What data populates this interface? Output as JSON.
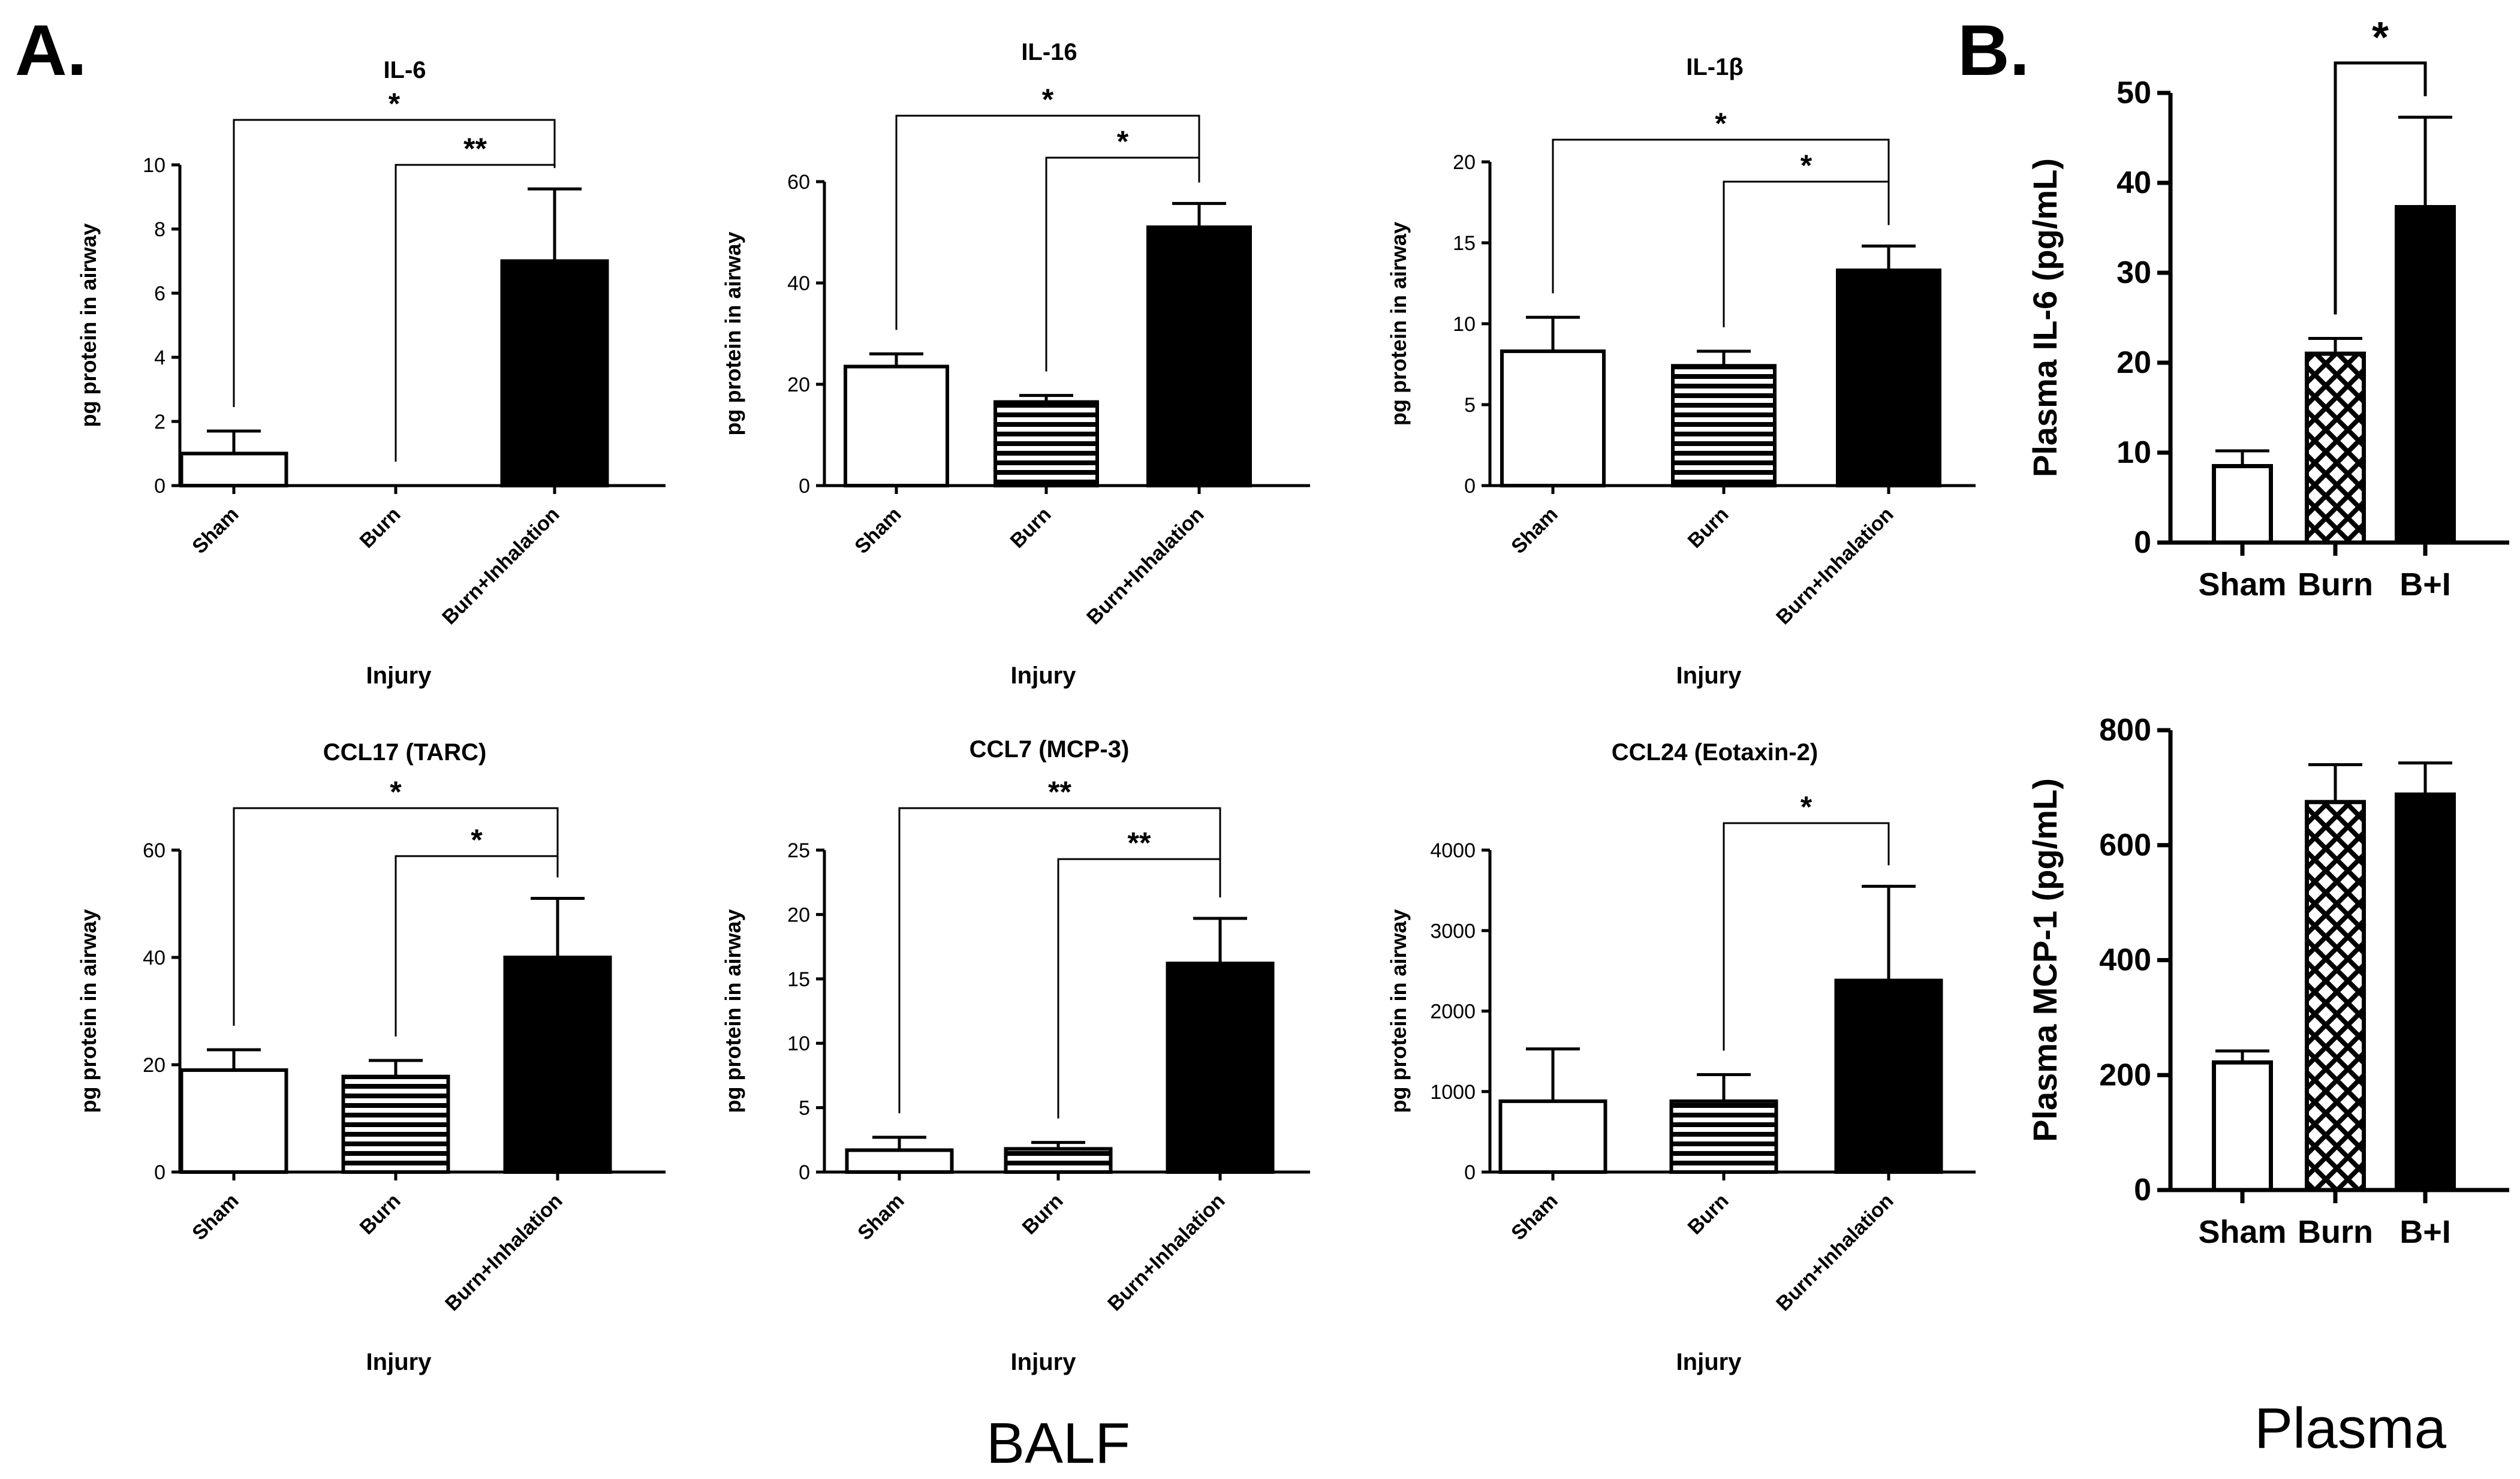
{
  "figure": {
    "panel_a_label": "A.",
    "panel_b_label": "B.",
    "group_a_caption": "BALF",
    "group_b_caption": "Plasma"
  },
  "chart_data": [
    {
      "type": "bar",
      "title": "IL-6",
      "xlabel": "Injury",
      "ylabel": "pg protein in airway",
      "categories": [
        "Sham",
        "Burn",
        "Burn+Inhalation"
      ],
      "values": [
        1.0,
        0.0,
        7.0
      ],
      "errors": [
        0.7,
        0.0,
        2.25
      ],
      "ylim": [
        0,
        10
      ],
      "yticks": [
        0,
        2,
        4,
        6,
        8,
        10
      ],
      "fills": [
        "white",
        "stripes",
        "black"
      ],
      "significance": [
        {
          "from": 0,
          "to": 2,
          "label": "*"
        },
        {
          "from": 1,
          "to": 2,
          "label": "**"
        }
      ]
    },
    {
      "type": "bar",
      "title": "IL-16",
      "xlabel": "Injury",
      "ylabel": "pg protein in airway",
      "categories": [
        "Sham",
        "Burn",
        "Burn+Inhalation"
      ],
      "values": [
        23.5,
        16.5,
        51.0
      ],
      "errors": [
        2.5,
        1.3,
        4.7
      ],
      "ylim": [
        0,
        60
      ],
      "yticks": [
        0,
        20,
        40,
        60
      ],
      "fills": [
        "white",
        "stripes",
        "black"
      ],
      "significance": [
        {
          "from": 0,
          "to": 2,
          "label": "*"
        },
        {
          "from": 1,
          "to": 2,
          "label": "*"
        }
      ]
    },
    {
      "type": "bar",
      "title": "IL-1β",
      "xlabel": "Injury",
      "ylabel": "pg protein in airway",
      "categories": [
        "Sham",
        "Burn",
        "Burn+Inhalation"
      ],
      "values": [
        8.3,
        7.4,
        13.3
      ],
      "errors": [
        2.1,
        0.9,
        1.5
      ],
      "ylim": [
        0,
        20
      ],
      "yticks": [
        0,
        5,
        10,
        15,
        20
      ],
      "fills": [
        "white",
        "stripes",
        "black"
      ],
      "significance": [
        {
          "from": 0,
          "to": 2,
          "label": "*"
        },
        {
          "from": 1,
          "to": 2,
          "label": "*"
        }
      ]
    },
    {
      "type": "bar",
      "title": "CCL17 (TARC)",
      "xlabel": "Injury",
      "ylabel": "pg protein in airway",
      "categories": [
        "Sham",
        "Burn",
        "Burn+Inhalation"
      ],
      "values": [
        19.0,
        17.8,
        40.0
      ],
      "errors": [
        3.8,
        3.0,
        11.0
      ],
      "ylim": [
        0,
        60
      ],
      "yticks": [
        0,
        20,
        40,
        60
      ],
      "fills": [
        "white",
        "stripes",
        "black"
      ],
      "significance": [
        {
          "from": 0,
          "to": 2,
          "label": "*"
        },
        {
          "from": 1,
          "to": 2,
          "label": "*"
        }
      ]
    },
    {
      "type": "bar",
      "title": "CCL7 (MCP-3)",
      "xlabel": "Injury",
      "ylabel": "pg protein in airway",
      "categories": [
        "Sham",
        "Burn",
        "Burn+Inhalation"
      ],
      "values": [
        1.7,
        1.8,
        16.2
      ],
      "errors": [
        1.0,
        0.5,
        3.5
      ],
      "ylim": [
        0,
        25
      ],
      "yticks": [
        0,
        5,
        10,
        15,
        20,
        25
      ],
      "fills": [
        "white",
        "stripes",
        "black"
      ],
      "significance": [
        {
          "from": 0,
          "to": 2,
          "label": "**"
        },
        {
          "from": 1,
          "to": 2,
          "label": "**"
        }
      ]
    },
    {
      "type": "bar",
      "title": "CCL24 (Eotaxin-2)",
      "xlabel": "Injury",
      "ylabel": "pg protein in airway",
      "categories": [
        "Sham",
        "Burn",
        "Burn+Inhalation"
      ],
      "values": [
        880,
        880,
        2380
      ],
      "errors": [
        650,
        330,
        1170
      ],
      "ylim": [
        0,
        4000
      ],
      "yticks": [
        0,
        1000,
        2000,
        3000,
        4000
      ],
      "fills": [
        "white",
        "stripes",
        "black"
      ],
      "significance": [
        {
          "from": 1,
          "to": 2,
          "label": "*"
        }
      ]
    },
    {
      "type": "bar",
      "title": "",
      "xlabel": "",
      "ylabel": "Plasma IL-6 (pg/mL)",
      "categories": [
        "Sham",
        "Burn",
        "B+I"
      ],
      "values": [
        8.5,
        21.0,
        37.3
      ],
      "errors": [
        1.7,
        1.7,
        10.0
      ],
      "ylim": [
        0,
        50
      ],
      "yticks": [
        0,
        10,
        20,
        30,
        40,
        50
      ],
      "fills": [
        "white",
        "checker",
        "black"
      ],
      "significance": [
        {
          "from": 1,
          "to": 2,
          "label": "*"
        }
      ]
    },
    {
      "type": "bar",
      "title": "",
      "xlabel": "",
      "ylabel": "Plasma MCP-1 (pg/mL)",
      "categories": [
        "Sham",
        "Burn",
        "B+I"
      ],
      "values": [
        222,
        675,
        688
      ],
      "errors": [
        20,
        65,
        55
      ],
      "ylim": [
        0,
        800
      ],
      "yticks": [
        0,
        200,
        400,
        600,
        800
      ],
      "fills": [
        "white",
        "checker",
        "black"
      ],
      "significance": []
    }
  ]
}
